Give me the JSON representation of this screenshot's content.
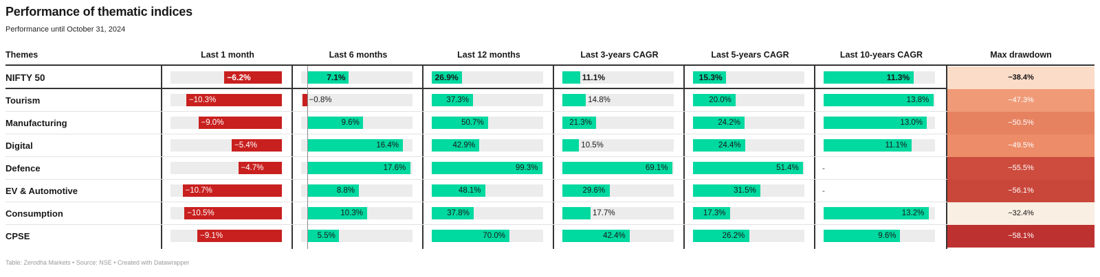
{
  "title": "Performance of thematic indices",
  "subtitle": "Performance until October 31, 2024",
  "source": "Table: Zerodha Markets • Source: NSE • Created with Datawrapper",
  "chart_data": {
    "type": "table",
    "columns": [
      "Themes",
      "Last 1 month",
      "Last 6 months",
      "Last 12 months",
      "Last 3-years CAGR",
      "Last 5-years CAGR",
      "Last 10-years CAGR",
      "Max drawdown"
    ],
    "bar_columns": [
      {
        "label": "Last 1 month",
        "min": -12,
        "max": 0
      },
      {
        "label": "Last 6 months",
        "min": -1,
        "max": 18
      },
      {
        "label": "Last 12 months",
        "min": 0,
        "max": 100
      },
      {
        "label": "Last 3-years CAGR",
        "min": 0,
        "max": 70
      },
      {
        "label": "Last 5-years CAGR",
        "min": 0,
        "max": 52
      },
      {
        "label": "Last 10-years CAGR",
        "min": 0,
        "max": 14
      }
    ],
    "rows": [
      {
        "theme": "NIFTY 50",
        "values": [
          -6.2,
          7.1,
          26.9,
          11.1,
          15.3,
          11.3
        ],
        "labels": [
          "−6.2%",
          "7.1%",
          "26.9%",
          "11.1%",
          "15.3%",
          "11.3%"
        ],
        "drawdown": -38.4,
        "drawdown_label": "−38.4%",
        "drawdown_color": "#fbdcc8"
      },
      {
        "theme": "Tourism",
        "values": [
          -10.3,
          -0.8,
          37.3,
          14.8,
          20.0,
          13.8
        ],
        "labels": [
          "−10.3%",
          "−0.8%",
          "37.3%",
          "14.8%",
          "20.0%",
          "13.8%"
        ],
        "drawdown": -47.3,
        "drawdown_label": "−47.3%",
        "drawdown_color": "#f09a77"
      },
      {
        "theme": "Manufacturing",
        "values": [
          -9.0,
          9.6,
          50.7,
          21.3,
          24.2,
          13.0
        ],
        "labels": [
          "−9.0%",
          "9.6%",
          "50.7%",
          "21.3%",
          "24.2%",
          "13.0%"
        ],
        "drawdown": -50.5,
        "drawdown_label": "−50.5%",
        "drawdown_color": "#e6825f"
      },
      {
        "theme": "Digital",
        "values": [
          -5.4,
          16.4,
          42.9,
          10.5,
          24.4,
          11.1
        ],
        "labels": [
          "−5.4%",
          "16.4%",
          "42.9%",
          "10.5%",
          "24.4%",
          "11.1%"
        ],
        "drawdown": -49.5,
        "drawdown_label": "−49.5%",
        "drawdown_color": "#ec8c68"
      },
      {
        "theme": "Defence",
        "values": [
          -4.7,
          17.6,
          99.3,
          69.1,
          51.4,
          null
        ],
        "labels": [
          "−4.7%",
          "17.6%",
          "99.3%",
          "69.1%",
          "51.4%",
          "-"
        ],
        "drawdown": -55.5,
        "drawdown_label": "−55.5%",
        "drawdown_color": "#cd4c3e"
      },
      {
        "theme": "EV & Automotive",
        "values": [
          -10.7,
          8.8,
          48.1,
          29.6,
          31.5,
          null
        ],
        "labels": [
          "−10.7%",
          "8.8%",
          "48.1%",
          "29.6%",
          "31.5%",
          "-"
        ],
        "drawdown": -56.1,
        "drawdown_label": "−56.1%",
        "drawdown_color": "#c9463a"
      },
      {
        "theme": "Consumption",
        "values": [
          -10.5,
          10.3,
          37.8,
          17.7,
          17.3,
          13.2
        ],
        "labels": [
          "−10.5%",
          "10.3%",
          "37.8%",
          "17.7%",
          "17.3%",
          "13.2%"
        ],
        "drawdown": -32.4,
        "drawdown_label": "−32.4%",
        "drawdown_color": "#faefe3"
      },
      {
        "theme": "CPSE",
        "values": [
          -9.1,
          5.5,
          70.0,
          42.4,
          26.2,
          9.6
        ],
        "labels": [
          "−9.1%",
          "5.5%",
          "70.0%",
          "42.4%",
          "26.2%",
          "9.6%"
        ],
        "drawdown": -58.1,
        "drawdown_label": "−58.1%",
        "drawdown_color": "#bd3230"
      }
    ]
  }
}
